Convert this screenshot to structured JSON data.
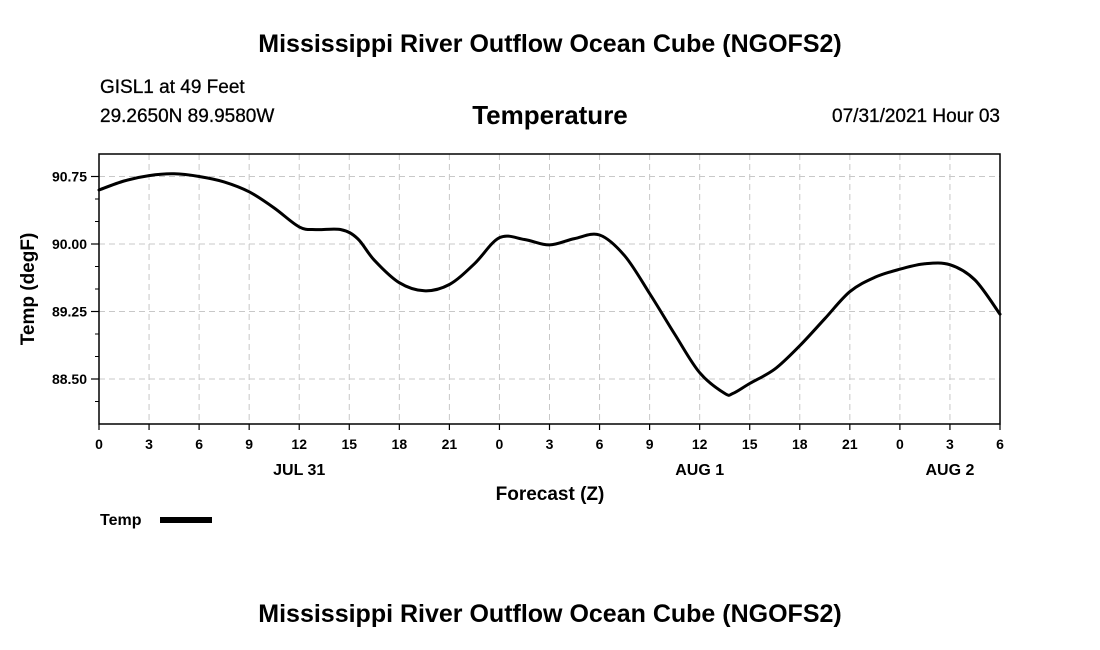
{
  "header": {
    "title": "Mississippi River Outflow Ocean Cube (NGOFS2)",
    "station": "GISL1 at 49 Feet",
    "coordinates": "29.2650N  89.9580W",
    "variable": "Temperature",
    "datetime": "07/31/2021 Hour 03"
  },
  "footer": {
    "title": "Mississippi River Outflow Ocean Cube (NGOFS2)"
  },
  "chart_data": {
    "type": "line",
    "title": "Temperature",
    "xlabel": "Forecast (Z)",
    "ylabel": "Temp (degF)",
    "xlim": [
      0,
      54
    ],
    "ylim": [
      88.0,
      91.0
    ],
    "grid": true,
    "x_ticks": [
      0,
      3,
      6,
      9,
      12,
      15,
      18,
      21,
      24,
      27,
      30,
      33,
      36,
      39,
      42,
      45,
      48,
      51,
      54
    ],
    "x_tick_labels": [
      "0",
      "3",
      "6",
      "9",
      "12",
      "15",
      "18",
      "21",
      "0",
      "3",
      "6",
      "9",
      "12",
      "15",
      "18",
      "21",
      "0",
      "3",
      "6"
    ],
    "y_ticks": [
      88.5,
      89.25,
      90.0,
      90.75
    ],
    "y_tick_labels": [
      "88.50",
      "89.25",
      "90.00",
      "90.75"
    ],
    "y_minor_ticks": [
      88.25,
      88.75,
      89.0,
      89.5,
      89.75,
      90.25,
      90.5
    ],
    "date_labels": [
      {
        "x": 12,
        "label": "JUL 31"
      },
      {
        "x": 36,
        "label": "AUG 1"
      },
      {
        "x": 51,
        "label": "AUG 2"
      }
    ],
    "legend": {
      "position": "bottom-left",
      "entries": [
        "Temp"
      ]
    },
    "series": [
      {
        "name": "Temp",
        "color": "#000000",
        "x": [
          0,
          1.5,
          3,
          4.5,
          6,
          7.5,
          9,
          10.5,
          12,
          13,
          14.5,
          15.5,
          16.5,
          18,
          19.5,
          21,
          22.5,
          24,
          25.5,
          27,
          28.5,
          30,
          31.5,
          33,
          34.5,
          36,
          37.5,
          38,
          39,
          40.5,
          42,
          43.5,
          45,
          46.5,
          48,
          49.5,
          51,
          52.5,
          54
        ],
        "y": [
          90.6,
          90.7,
          90.76,
          90.78,
          90.75,
          90.69,
          90.58,
          90.4,
          90.19,
          90.16,
          90.16,
          90.06,
          89.82,
          89.57,
          89.48,
          89.55,
          89.78,
          90.07,
          90.05,
          89.99,
          90.06,
          90.1,
          89.87,
          89.45,
          89.0,
          88.57,
          88.34,
          88.34,
          88.45,
          88.61,
          88.87,
          89.17,
          89.47,
          89.63,
          89.72,
          89.78,
          89.77,
          89.6,
          89.22
        ]
      }
    ]
  }
}
